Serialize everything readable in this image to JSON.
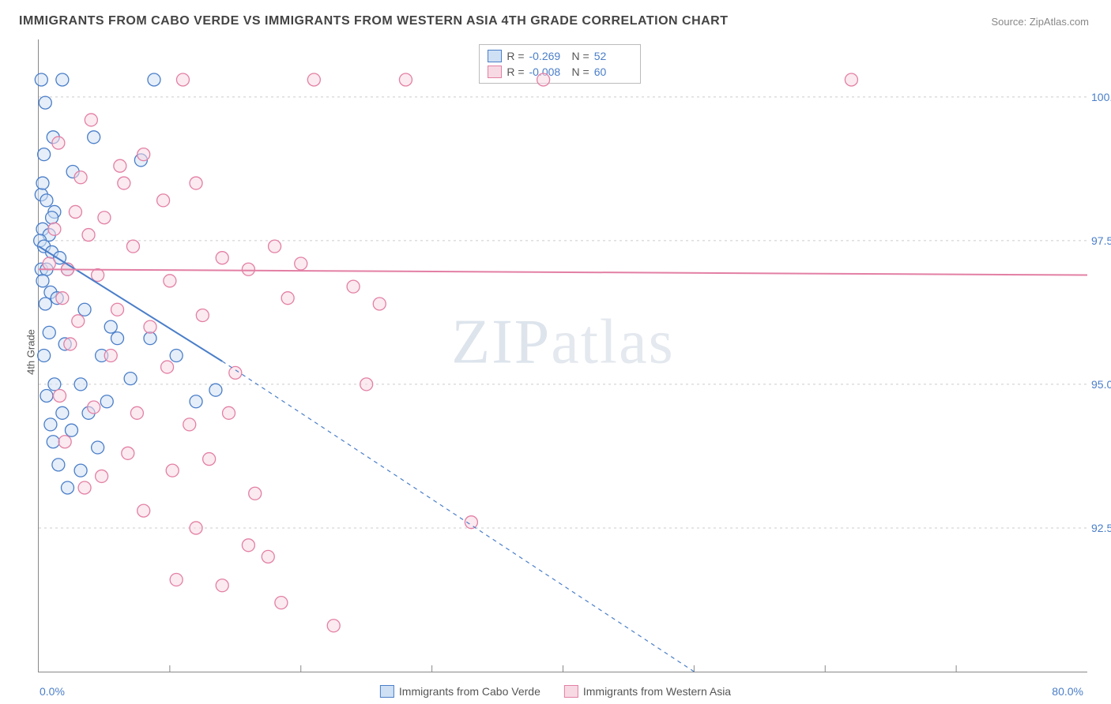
{
  "title": "IMMIGRANTS FROM CABO VERDE VS IMMIGRANTS FROM WESTERN ASIA 4TH GRADE CORRELATION CHART",
  "source": "Source: ZipAtlas.com",
  "watermark": {
    "part1": "ZIP",
    "part2": "atlas"
  },
  "chart": {
    "type": "scatter",
    "xlim": [
      0,
      80
    ],
    "ylim": [
      90,
      101
    ],
    "y_axis_label": "4th Grade",
    "x_tick_left": "0.0%",
    "x_tick_right": "80.0%",
    "y_ticks": [
      {
        "v": 92.5,
        "label": "92.5%"
      },
      {
        "v": 95.0,
        "label": "95.0%"
      },
      {
        "v": 97.5,
        "label": "97.5%"
      },
      {
        "v": 100.0,
        "label": "100.0%"
      }
    ],
    "x_ticks_minor": [
      10,
      20,
      30,
      40,
      50,
      60,
      70
    ],
    "background_color": "#ffffff",
    "grid_color": "#cccccc",
    "series": [
      {
        "name": "Immigrants from Cabo Verde",
        "color_stroke": "#4a7ec9",
        "color_fill": "#cfe0f4",
        "marker_radius": 8,
        "R": "-0.269",
        "N": "52",
        "trend": {
          "x1": 0,
          "y1": 97.4,
          "x2": 14,
          "y2": 95.4,
          "dash_to_x": 50,
          "dash_to_y": 90.0,
          "width": 2
        },
        "points": [
          [
            0.2,
            100.3
          ],
          [
            1.8,
            100.3
          ],
          [
            8.8,
            100.3
          ],
          [
            0.5,
            99.9
          ],
          [
            1.1,
            99.3
          ],
          [
            4.2,
            99.3
          ],
          [
            0.4,
            99.0
          ],
          [
            2.6,
            98.7
          ],
          [
            7.8,
            98.9
          ],
          [
            0.2,
            98.3
          ],
          [
            0.6,
            98.2
          ],
          [
            1.2,
            98.0
          ],
          [
            0.3,
            97.7
          ],
          [
            0.8,
            97.6
          ],
          [
            0.1,
            97.5
          ],
          [
            0.4,
            97.4
          ],
          [
            1.0,
            97.3
          ],
          [
            1.6,
            97.2
          ],
          [
            0.2,
            97.0
          ],
          [
            0.6,
            97.0
          ],
          [
            2.2,
            97.0
          ],
          [
            0.3,
            96.8
          ],
          [
            0.9,
            96.6
          ],
          [
            1.4,
            96.5
          ],
          [
            0.5,
            96.4
          ],
          [
            3.5,
            96.3
          ],
          [
            5.5,
            96.0
          ],
          [
            0.8,
            95.9
          ],
          [
            2.0,
            95.7
          ],
          [
            0.4,
            95.5
          ],
          [
            4.8,
            95.5
          ],
          [
            7.0,
            95.1
          ],
          [
            1.2,
            95.0
          ],
          [
            3.2,
            95.0
          ],
          [
            0.6,
            94.8
          ],
          [
            5.2,
            94.7
          ],
          [
            1.8,
            94.5
          ],
          [
            3.8,
            94.5
          ],
          [
            13.5,
            94.9
          ],
          [
            0.9,
            94.3
          ],
          [
            2.5,
            94.2
          ],
          [
            1.1,
            94.0
          ],
          [
            4.5,
            93.9
          ],
          [
            1.5,
            93.6
          ],
          [
            3.2,
            93.5
          ],
          [
            2.2,
            93.2
          ],
          [
            6.0,
            95.8
          ],
          [
            8.5,
            95.8
          ],
          [
            10.5,
            95.5
          ],
          [
            12.0,
            94.7
          ],
          [
            1.0,
            97.9
          ],
          [
            0.3,
            98.5
          ]
        ]
      },
      {
        "name": "Immigrants from Western Asia",
        "color_stroke": "#e37fa4",
        "color_fill": "#f7d9e4",
        "marker_radius": 8,
        "R": "-0.008",
        "N": "60",
        "trend": {
          "x1": 0,
          "y1": 97.0,
          "x2": 80,
          "y2": 96.9,
          "width": 2
        },
        "points": [
          [
            11.0,
            100.3
          ],
          [
            21.0,
            100.3
          ],
          [
            28.0,
            100.3
          ],
          [
            38.5,
            100.3
          ],
          [
            62.0,
            100.3
          ],
          [
            4.0,
            99.6
          ],
          [
            1.5,
            99.2
          ],
          [
            8.0,
            99.0
          ],
          [
            3.2,
            98.6
          ],
          [
            6.5,
            98.5
          ],
          [
            12.0,
            98.5
          ],
          [
            9.5,
            98.2
          ],
          [
            2.8,
            98.0
          ],
          [
            5.0,
            97.9
          ],
          [
            1.2,
            97.7
          ],
          [
            3.8,
            97.6
          ],
          [
            7.2,
            97.4
          ],
          [
            14.0,
            97.2
          ],
          [
            18.0,
            97.4
          ],
          [
            0.8,
            97.1
          ],
          [
            2.2,
            97.0
          ],
          [
            4.5,
            96.9
          ],
          [
            10.0,
            96.8
          ],
          [
            16.0,
            97.0
          ],
          [
            20.0,
            97.1
          ],
          [
            24.0,
            96.7
          ],
          [
            1.8,
            96.5
          ],
          [
            6.0,
            96.3
          ],
          [
            3.0,
            96.1
          ],
          [
            8.5,
            96.0
          ],
          [
            12.5,
            96.2
          ],
          [
            26.0,
            96.4
          ],
          [
            2.4,
            95.7
          ],
          [
            5.5,
            95.5
          ],
          [
            9.8,
            95.3
          ],
          [
            15.0,
            95.2
          ],
          [
            25.0,
            95.0
          ],
          [
            1.6,
            94.8
          ],
          [
            4.2,
            94.6
          ],
          [
            7.5,
            94.5
          ],
          [
            11.5,
            94.3
          ],
          [
            14.5,
            94.5
          ],
          [
            2.0,
            94.0
          ],
          [
            6.8,
            93.8
          ],
          [
            10.2,
            93.5
          ],
          [
            16.5,
            93.1
          ],
          [
            3.5,
            93.2
          ],
          [
            8.0,
            92.8
          ],
          [
            12.0,
            92.5
          ],
          [
            33.0,
            92.6
          ],
          [
            16.0,
            92.2
          ],
          [
            10.5,
            91.6
          ],
          [
            14.0,
            91.5
          ],
          [
            17.5,
            92.0
          ],
          [
            18.5,
            91.2
          ],
          [
            22.5,
            90.8
          ],
          [
            4.8,
            93.4
          ],
          [
            13.0,
            93.7
          ],
          [
            19.0,
            96.5
          ],
          [
            6.2,
            98.8
          ]
        ]
      }
    ]
  }
}
